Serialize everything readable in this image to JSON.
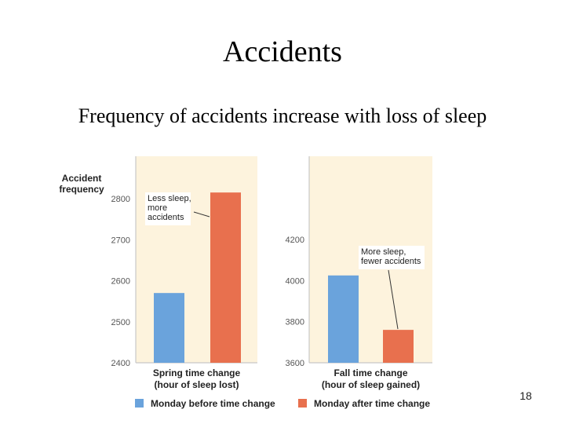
{
  "slide": {
    "title": "Accidents",
    "subtitle": "Frequency of accidents increase with loss of sleep",
    "page_number": "18"
  },
  "chart_data": [
    {
      "type": "bar",
      "ylabel": "Accident\nfrequency",
      "xlabel": "Spring time change\n(hour of sleep lost)",
      "ylim": [
        2400,
        2850
      ],
      "yticks": [
        2400,
        2500,
        2600,
        2700,
        2800
      ],
      "categories": [
        "Monday before time change",
        "Monday after time change"
      ],
      "values": [
        2570,
        2815
      ],
      "colors": [
        "#6aa3dc",
        "#e8704e"
      ],
      "annotation": "Less sleep,\nmore\naccidents"
    },
    {
      "type": "bar",
      "ylabel": "",
      "xlabel": "Fall time change\n(hour of sleep gained)",
      "ylim": [
        3600,
        4400
      ],
      "yticks": [
        3600,
        3800,
        4000,
        4200
      ],
      "categories": [
        "Monday before time change",
        "Monday after time change"
      ],
      "values": [
        4025,
        3760
      ],
      "colors": [
        "#6aa3dc",
        "#e8704e"
      ],
      "annotation": "More sleep,\nfewer accidents"
    }
  ],
  "legend": {
    "placement": "bottom",
    "items": [
      {
        "label": "Monday before time change",
        "color": "#6aa3dc"
      },
      {
        "label": "Monday after time change",
        "color": "#e8704e"
      }
    ]
  },
  "colors": {
    "panel_background": "#fdf3dd",
    "axis": "#c8c8c8",
    "tick_text": "#555555",
    "label_text": "#222222"
  }
}
